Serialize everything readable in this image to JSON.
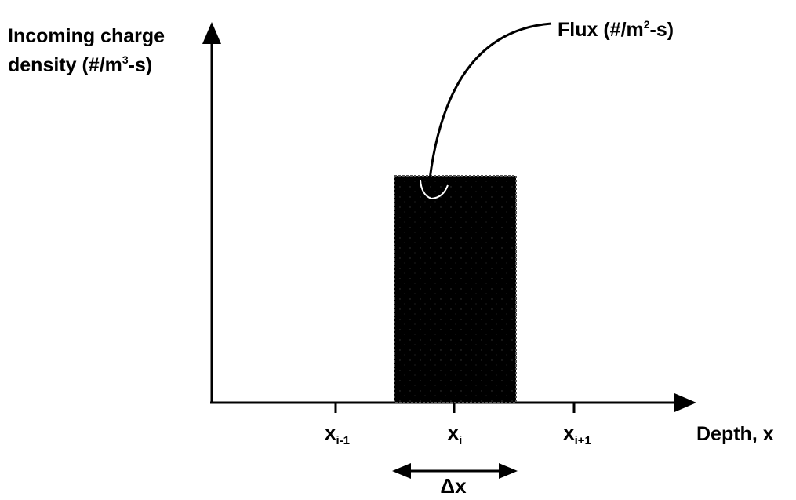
{
  "y_axis_label": {
    "line1": "Incoming charge",
    "line2_prefix": "density (#/m",
    "line2_sup": "3",
    "line2_suffix": "-s)"
  },
  "flux_label": {
    "prefix": "Flux (#/m",
    "sup": "2",
    "suffix": "-s)"
  },
  "x_axis_label": "Depth, x",
  "ticks": [
    {
      "base": "x",
      "sub": "i-1"
    },
    {
      "base": "x",
      "sub": "i"
    },
    {
      "base": "x",
      "sub": "i+1"
    }
  ],
  "interval_label": "Δx",
  "colors": {
    "ink": "#000000",
    "background": "#ffffff"
  }
}
